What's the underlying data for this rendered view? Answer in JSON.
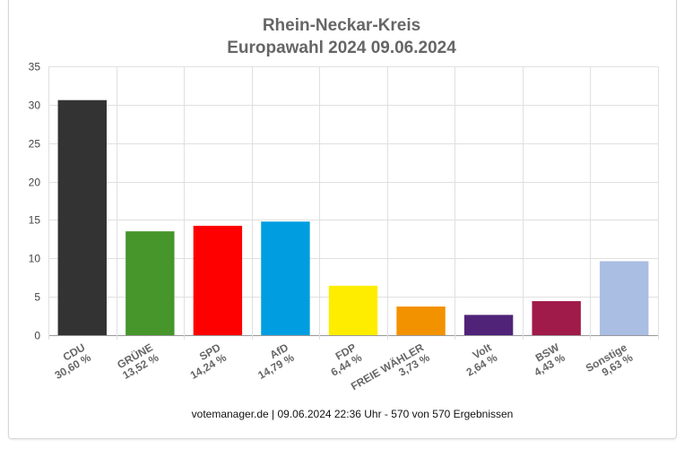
{
  "chart_data": {
    "type": "bar",
    "title": "Rhein-Neckar-Kreis",
    "subtitle": "Europawahl 2024 09.06.2024",
    "categories": [
      "CDU",
      "GRÜNE",
      "SPD",
      "AfD",
      "FDP",
      "FREIE WÄHLER",
      "Volt",
      "BSW",
      "Sonstige"
    ],
    "value_labels": [
      "30,60 %",
      "13,52 %",
      "14,24 %",
      "14,79 %",
      "6,44 %",
      "3,73 %",
      "2,64 %",
      "4,43 %",
      "9,63 %"
    ],
    "values": [
      30.6,
      13.52,
      14.24,
      14.79,
      6.44,
      3.73,
      2.64,
      4.43,
      9.63
    ],
    "colors": [
      "#333333",
      "#46962b",
      "#ff0000",
      "#009ee0",
      "#ffed00",
      "#f39200",
      "#502379",
      "#a01a4a",
      "#aabde3"
    ],
    "ylim": [
      0,
      35
    ],
    "yticks": [
      0,
      5,
      10,
      15,
      20,
      25,
      30,
      35
    ],
    "grid": true,
    "legend": "none",
    "footer": "votemanager.de | 09.06.2024 22:36 Uhr - 570 von 570 Ergebnissen"
  }
}
